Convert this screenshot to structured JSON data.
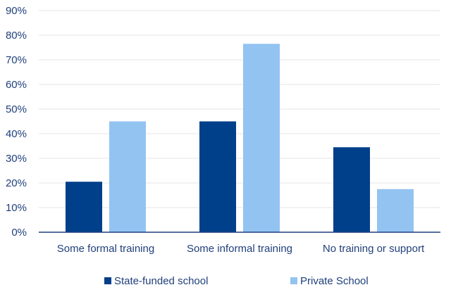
{
  "chart_data": {
    "type": "bar",
    "categories": [
      "Some formal training",
      "Some informal training",
      "No training or support"
    ],
    "series": [
      {
        "name": "State-funded school",
        "values": [
          20.5,
          45,
          34.5
        ],
        "color": "#003f8a"
      },
      {
        "name": "Private School",
        "values": [
          45,
          76.5,
          17.5
        ],
        "color": "#93c3f1"
      }
    ],
    "y_ticks": [
      "0%",
      "10%",
      "20%",
      "30%",
      "40%",
      "50%",
      "60%",
      "70%",
      "80%",
      "90%"
    ],
    "ylim": [
      0,
      90
    ],
    "y_unit": "percent",
    "grid": true,
    "legend_position": "bottom",
    "axis_color": "#1f3f7a",
    "grid_color": "#e6e6e6"
  }
}
